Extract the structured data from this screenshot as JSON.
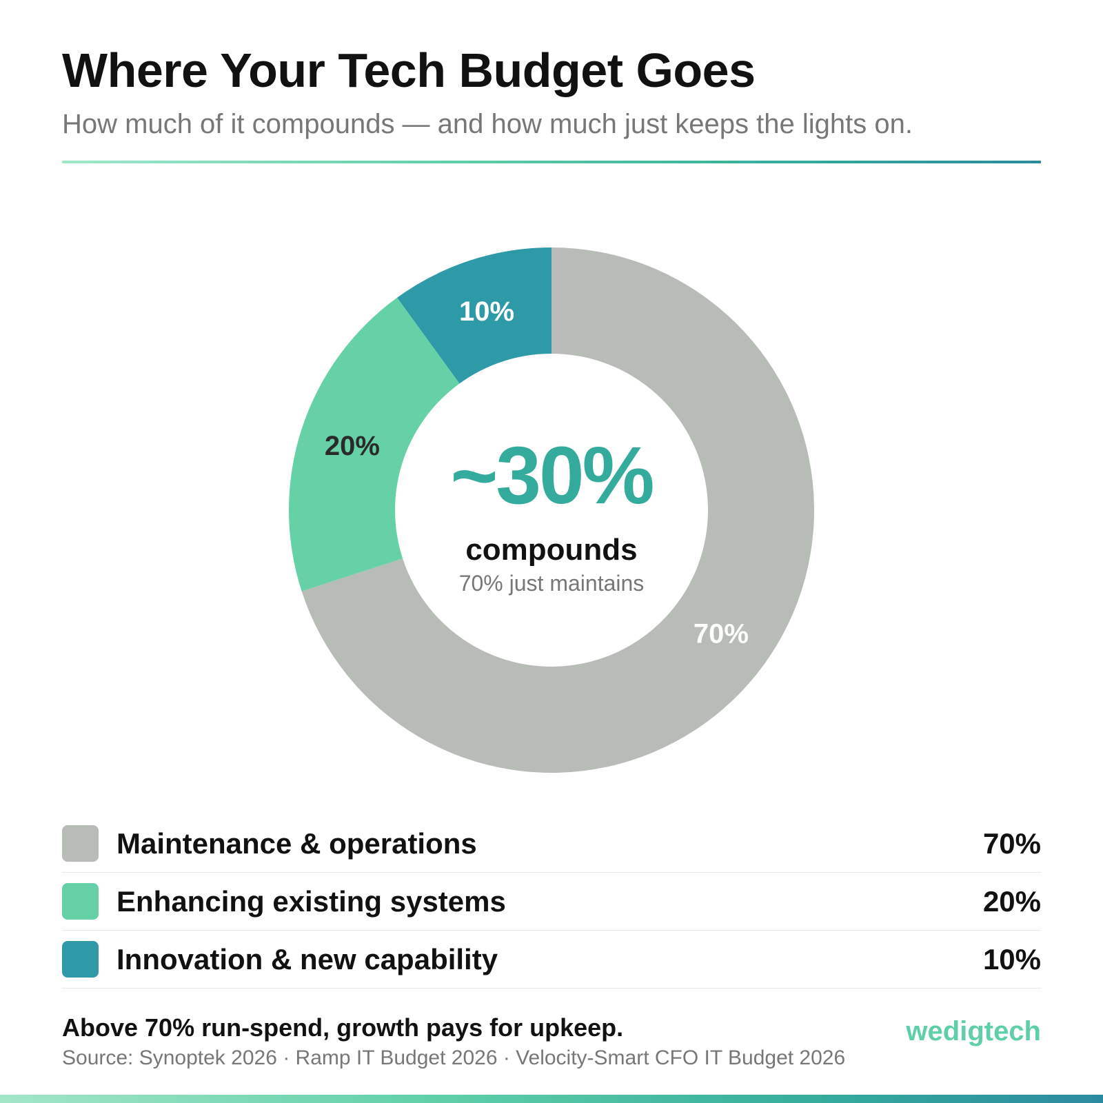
{
  "header": {
    "title": "Where Your Tech Budget Goes",
    "subtitle": "How much of it compounds — and how much just keeps the lights on."
  },
  "chart_data": {
    "type": "pie",
    "style": "donut",
    "title": "Where Your Tech Budget Goes",
    "categories": [
      "Maintenance & operations",
      "Enhancing existing systems",
      "Innovation & new capability"
    ],
    "values": [
      70,
      20,
      10
    ],
    "data_labels": [
      "70%",
      "20%",
      "10%"
    ],
    "colors": [
      "#b8bcb6",
      "#66d1a7",
      "#2f9aa7"
    ],
    "label_colors": [
      "#ffffff",
      "#2a2a2a",
      "#ffffff"
    ],
    "start_angle_deg": 0,
    "direction": "clockwise",
    "center": {
      "big": "~30%",
      "mid": "compounds",
      "small": "70% just maintains"
    },
    "legend_position": "bottom"
  },
  "legend": [
    {
      "label": "Maintenance & operations",
      "value": "70%",
      "color": "#b8bcb6"
    },
    {
      "label": "Enhancing existing systems",
      "value": "20%",
      "color": "#66d1a7"
    },
    {
      "label": "Innovation & new capability",
      "value": "10%",
      "color": "#2f9aa7"
    }
  ],
  "footer": {
    "takeaway": "Above 70% run-spend, growth pays for upkeep.",
    "source": "Source: Synoptek 2026 · Ramp IT Budget 2026 · Velocity-Smart CFO IT Budget 2026",
    "brand": "wedigtech"
  }
}
